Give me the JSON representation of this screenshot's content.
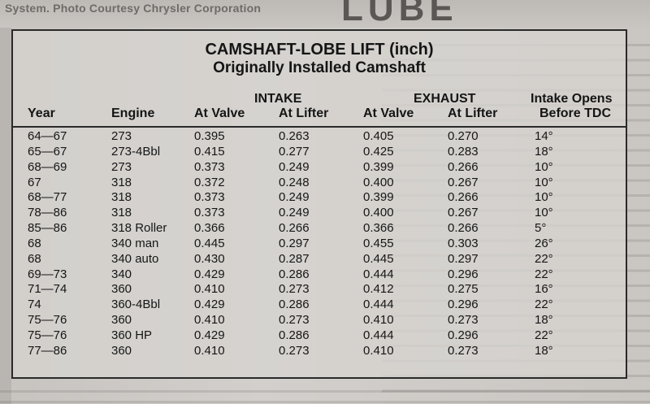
{
  "page": {
    "background_caption": "System. Photo Courtesy Chrysler Corporation",
    "background_title": "LUBE"
  },
  "table": {
    "title_line1": "CAMSHAFT-LOBE LIFT (inch)",
    "title_line2": "Originally Installed Camshaft",
    "group_intake": "INTAKE",
    "group_exhaust": "EXHAUST",
    "group_opens": "Intake Opens",
    "columns": [
      "Year",
      "Engine",
      "At Valve",
      "At Lifter",
      "At Valve",
      "At Lifter",
      "Before TDC"
    ],
    "rows": [
      [
        "64—67",
        "273",
        "0.395",
        "0.263",
        "0.405",
        "0.270",
        "14°"
      ],
      [
        "65—67",
        "273-4Bbl",
        "0.415",
        "0.277",
        "0.425",
        "0.283",
        "18°"
      ],
      [
        "68—69",
        "273",
        "0.373",
        "0.249",
        "0.399",
        "0.266",
        "10°"
      ],
      [
        "67",
        "318",
        "0.372",
        "0.248",
        "0.400",
        "0.267",
        "10°"
      ],
      [
        "68—77",
        "318",
        "0.373",
        "0.249",
        "0.399",
        "0.266",
        "10°"
      ],
      [
        "78—86",
        "318",
        "0.373",
        "0.249",
        "0.400",
        "0.267",
        "10°"
      ],
      [
        "85—86",
        "318 Roller",
        "0.366",
        "0.266",
        "0.366",
        "0.266",
        "5°"
      ],
      [
        "68",
        "340 man",
        "0.445",
        "0.297",
        "0.455",
        "0.303",
        "26°"
      ],
      [
        "68",
        "340 auto",
        "0.430",
        "0.287",
        "0.445",
        "0.297",
        "22°"
      ],
      [
        "69—73",
        "340",
        "0.429",
        "0.286",
        "0.444",
        "0.296",
        "22°"
      ],
      [
        "71—74",
        "360",
        "0.410",
        "0.273",
        "0.412",
        "0.275",
        "16°"
      ],
      [
        "74",
        "360-4Bbl",
        "0.429",
        "0.286",
        "0.444",
        "0.296",
        "22°"
      ],
      [
        "75—76",
        "360",
        "0.410",
        "0.273",
        "0.410",
        "0.273",
        "18°"
      ],
      [
        "75—76",
        "360 HP",
        "0.429",
        "0.286",
        "0.444",
        "0.296",
        "22°"
      ],
      [
        "77—86",
        "360",
        "0.410",
        "0.273",
        "0.410",
        "0.273",
        "18°"
      ]
    ]
  }
}
